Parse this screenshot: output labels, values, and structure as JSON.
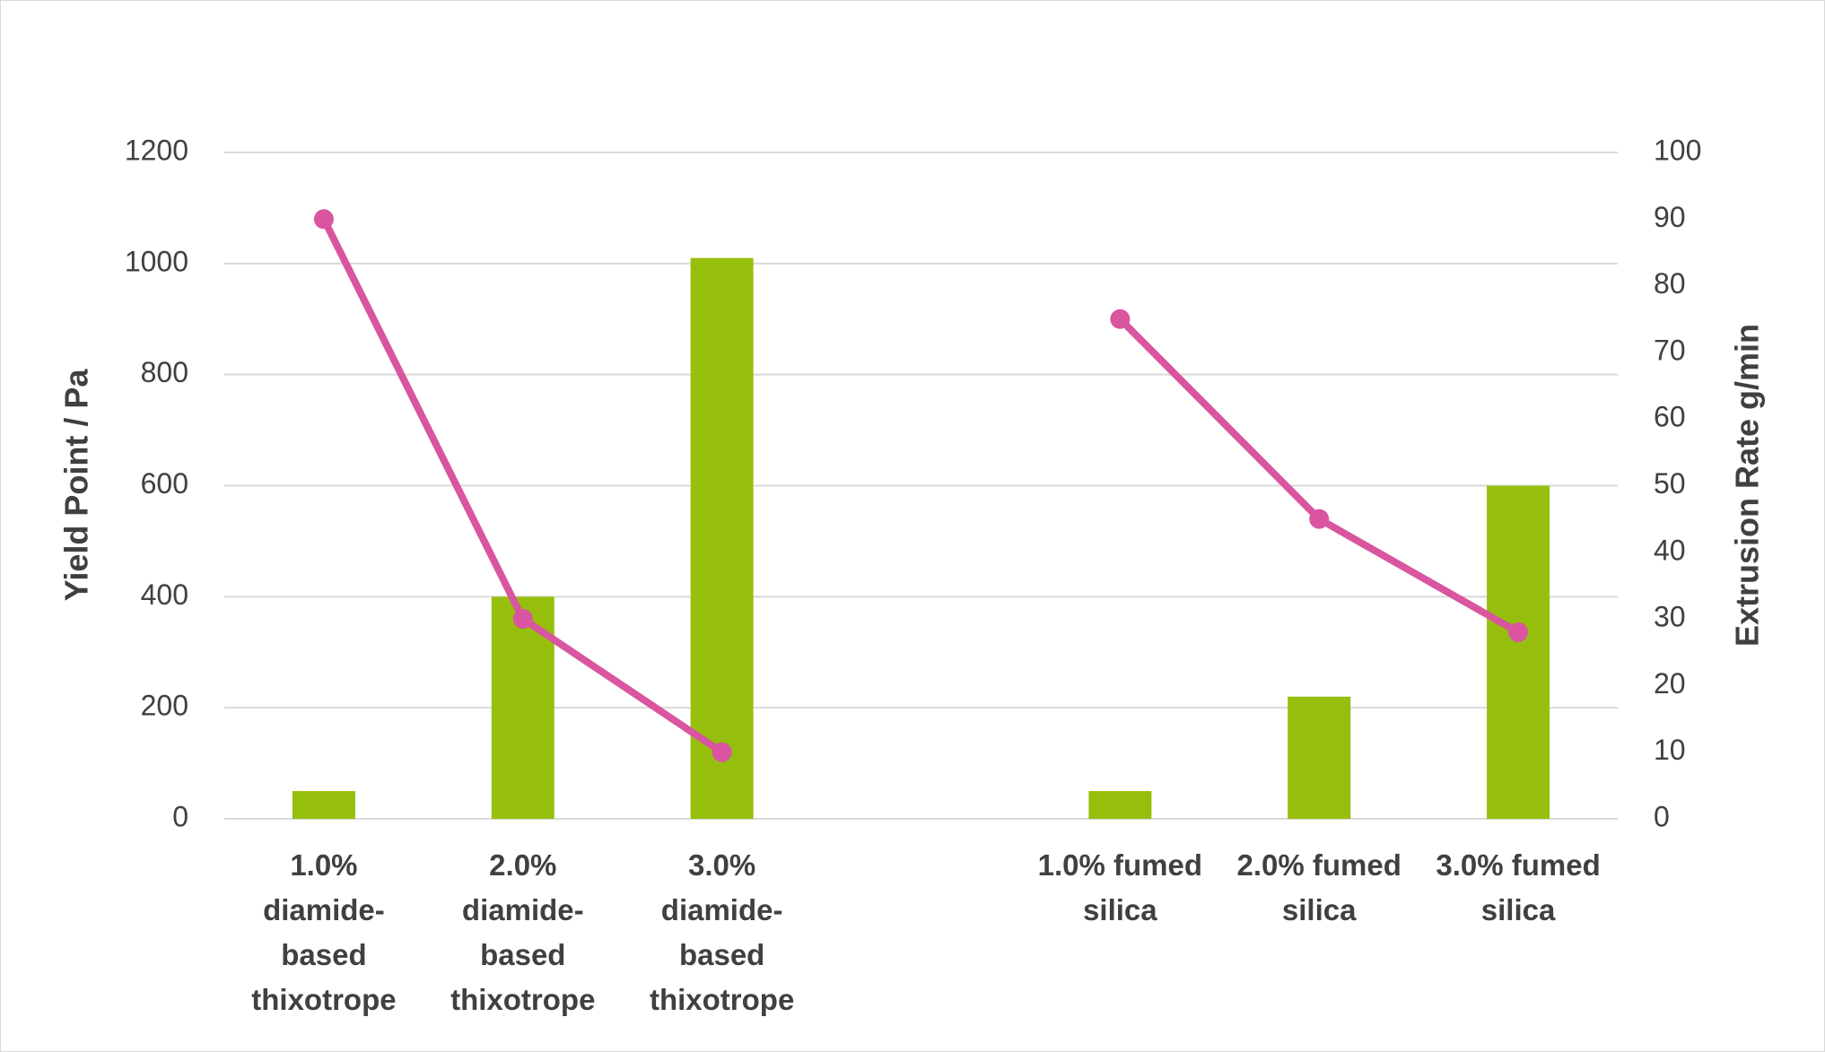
{
  "chart_data": {
    "type": "bar-line",
    "categories": [
      "1.0% diamide-based thixotrope",
      "2.0% diamide-based thixotrope",
      "3.0% diamide-based thixotrope",
      null,
      "1.0% fumed silica",
      "2.0% fumed silica",
      "3.0% fumed silica"
    ],
    "y_label": "Yield Point / Pa",
    "y2_label": "Extrusion Rate g/min",
    "series": [
      {
        "type": "bar",
        "color": "#96bf0d",
        "values": [
          50,
          400,
          1010,
          null,
          50,
          220,
          600
        ]
      },
      {
        "type": "line",
        "axis": "y2",
        "color": "#d9559f",
        "values": [
          90,
          30,
          10,
          null,
          75,
          45,
          28
        ]
      }
    ],
    "ylim": [
      0,
      1200
    ],
    "yticks": [
      0,
      200,
      400,
      600,
      800,
      1000,
      1200
    ],
    "y2lim": [
      0,
      100
    ],
    "y2ticks": [
      0,
      10,
      20,
      30,
      40,
      50,
      60,
      70,
      80,
      90,
      100
    ],
    "grid": true
  }
}
